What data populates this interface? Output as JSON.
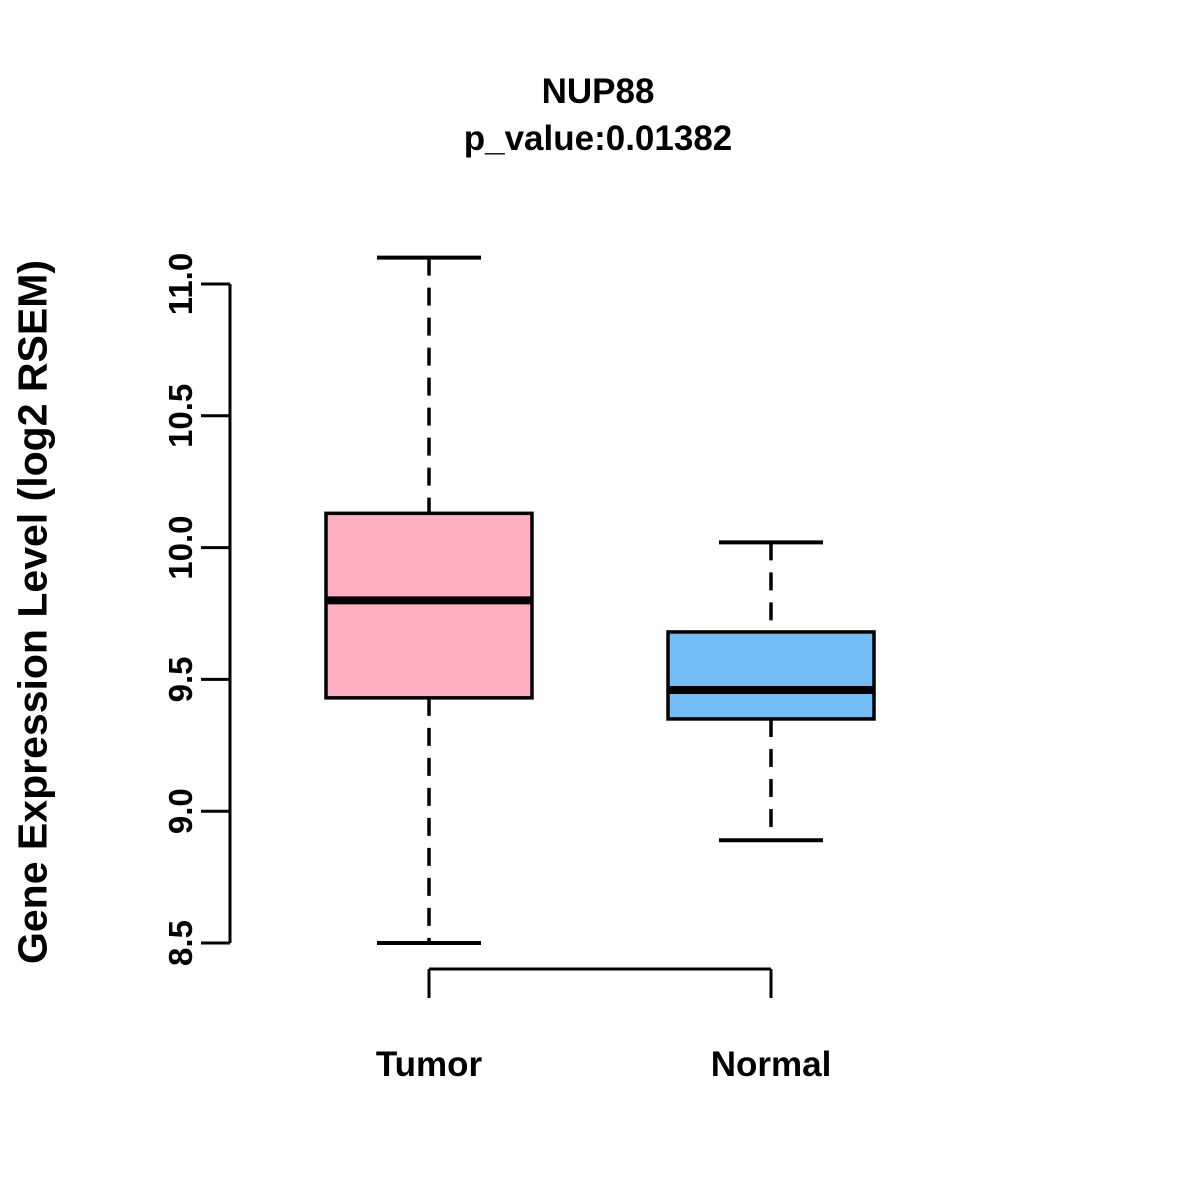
{
  "chart_data": {
    "type": "boxplot",
    "title": "NUP88",
    "subtitle": "p_value:0.01382",
    "ylabel": "Gene Expression Level (log2 RSEM)",
    "xlabel": "",
    "categories": [
      "Tumor",
      "Normal"
    ],
    "ylim": [
      8.5,
      11.0
    ],
    "yticks": [
      8.5,
      9.0,
      9.5,
      10.0,
      10.5,
      11.0
    ],
    "grid": false,
    "legend": null,
    "series": [
      {
        "name": "Tumor",
        "color": "#FFB0C0",
        "whisker_low": 8.5,
        "q1": 9.43,
        "median": 9.8,
        "q3": 10.13,
        "whisker_high": 11.1
      },
      {
        "name": "Normal",
        "color": "#73BDF7",
        "whisker_low": 8.89,
        "q1": 9.35,
        "median": 9.46,
        "q3": 9.68,
        "whisker_high": 10.02
      }
    ],
    "stroke_color": "#000000"
  }
}
